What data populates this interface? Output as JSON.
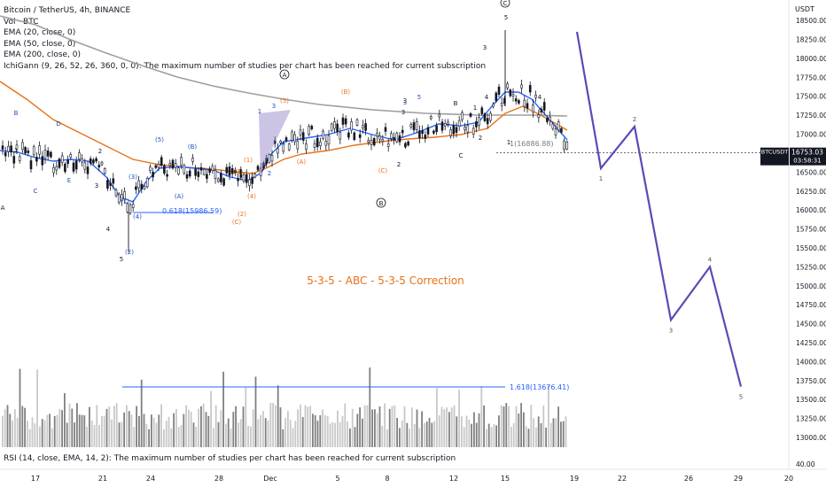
{
  "header": {
    "symbol_line": "Bitcoin / TetherUS, 4h, BINANCE",
    "vol_line": "Vol · BTC",
    "ema20": "EMA (20, close, 0)",
    "ema50": "EMA (50, close, 0)",
    "ema200": "EMA (200, close, 0)",
    "ichigann": "IchiGann (9, 26, 52, 26, 360, 0, 0): The maximum number of studies per chart has been reached for current subscription"
  },
  "rsi_line": "RSI (14, close, EMA, 14, 2): The maximum number of studies per chart has been reached for current subscription",
  "price_axis": {
    "unit": "USDT",
    "ticks": [
      18500,
      18250,
      18000,
      17750,
      17500,
      17250,
      17000,
      16750,
      16500,
      16250,
      16000,
      15750,
      15500,
      15250,
      15000,
      14750,
      14500,
      14250,
      14000,
      13750,
      13500,
      13250,
      13000
    ],
    "tick_labels": [
      "18500.00",
      "18250.00",
      "18000.00",
      "17750.00",
      "17500.00",
      "17250.00",
      "17000.00",
      "16750.00",
      "16500.00",
      "16250.00",
      "16000.00",
      "15750.00",
      "15500.00",
      "15250.00",
      "15000.00",
      "14750.00",
      "14500.00",
      "14250.00",
      "14000.00",
      "13750.00",
      "13500.00",
      "13250.00",
      "13000.00"
    ],
    "rsi_tick": "40.00"
  },
  "time_axis": [
    "17",
    "21",
    "24",
    "28",
    "Dec",
    "5",
    "8",
    "12",
    "15",
    "19",
    "22",
    "26",
    "29",
    "20"
  ],
  "current_price": {
    "symbol": "BTCUSDT",
    "price": "16753.03",
    "countdown": "03:58:31",
    "value": 16753.03
  },
  "title_annotation": "5-3-5 - ABC - 5-3-5 Correction",
  "fib_labels": {
    "fib618": "0.618(15986.59)",
    "fib1618": "1.618(13676.41)",
    "fib1": "1(16886.88)"
  },
  "wave_labels": {
    "A_circle": "A",
    "B_circle": "B",
    "C_circle": "C",
    "black": [
      "A",
      "1",
      "2",
      "3",
      "4",
      "5",
      "3",
      "4",
      "5",
      "1",
      "2",
      "3",
      "B",
      "C",
      "2",
      "1",
      "4",
      "5"
    ],
    "blue": [
      "B",
      "C",
      "E",
      "D",
      "(1)",
      "(2)",
      "(3)",
      "(4)",
      "(5)",
      "(A)",
      "(B)",
      "1",
      "2",
      "3",
      "4",
      "5"
    ],
    "orange": [
      "(1)",
      "(2)",
      "(3)",
      "(4)",
      "(5)",
      "(A)",
      "(B)",
      "(C)",
      "(C)"
    ],
    "projection": [
      "1",
      "2",
      "3",
      "4",
      "5"
    ]
  },
  "colors": {
    "ema20": "#2962ff",
    "ema50": "#e8711a",
    "ema200": "#9e9e9e",
    "candle": "#131722",
    "projection": "#5b4ab5",
    "fib": "#2962ff",
    "annotation": "#e8711a",
    "volume_light": "#c8c8c8",
    "volume_dark": "#808080"
  },
  "chart_data": {
    "type": "line",
    "title": "Bitcoin / TetherUS, 4h, BINANCE",
    "y_unit": "USDT",
    "ylim": [
      12900,
      18700
    ],
    "projection_path": {
      "x": [
        "Dec 18",
        "Dec 20",
        "Dec 22",
        "Dec 25",
        "Dec 27",
        "Dec 29"
      ],
      "y": [
        18350,
        16550,
        17100,
        14550,
        15250,
        13670
      ],
      "labels": [
        "",
        "1",
        "2",
        "3",
        "4",
        "5"
      ]
    },
    "fib_levels": [
      {
        "ratio": "0.618",
        "value": 15986.59
      },
      {
        "ratio": "1.618",
        "value": 13676.41
      },
      {
        "ratio": "1",
        "value": 16886.88
      }
    ],
    "current_price": 16753.03,
    "grid": false,
    "legend": "top-left"
  }
}
